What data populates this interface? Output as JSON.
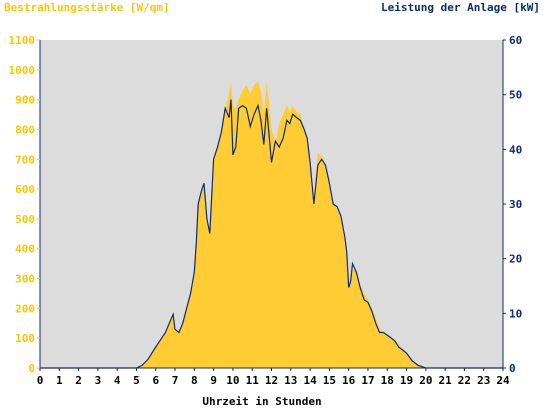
{
  "colors": {
    "irradiance_fill": "#FFCC33",
    "power_line": "#0F2B6B",
    "plot_background": "#DCDCDC",
    "left_axis_text": "#FFC600",
    "right_axis_text": "#0F2B6B",
    "axis_line": "#0F2B6B"
  },
  "chart_data": {
    "type": "area",
    "title_left": "Bestrahlungsstärke [W/qm]",
    "title_right": "Leistung der Anlage [kW]",
    "xlabel": "Uhrzeit in Stunden",
    "x_ticks": [
      "0",
      "1",
      "2",
      "3",
      "4",
      "5",
      "6",
      "7",
      "8",
      "9",
      "10",
      "11",
      "12",
      "13",
      "14",
      "15",
      "16",
      "17",
      "18",
      "19",
      "20",
      "21",
      "22",
      "23",
      "24"
    ],
    "y_left_ticks": [
      "0",
      "100",
      "200",
      "300",
      "400",
      "500",
      "600",
      "700",
      "800",
      "900",
      "1000",
      "1100"
    ],
    "y_right_ticks": [
      "0",
      "10",
      "20",
      "30",
      "40",
      "50",
      "60"
    ],
    "xlim": [
      0,
      24
    ],
    "ylim_left": [
      0,
      1100
    ],
    "ylim_right": [
      0,
      60
    ],
    "series": [
      {
        "name": "Bestrahlungsstärke [W/qm]",
        "axis": "left",
        "style": "area",
        "points": [
          [
            0,
            0
          ],
          [
            5.0,
            0
          ],
          [
            5.3,
            10
          ],
          [
            5.6,
            30
          ],
          [
            5.9,
            60
          ],
          [
            6.2,
            90
          ],
          [
            6.5,
            120
          ],
          [
            6.7,
            150
          ],
          [
            6.9,
            170
          ],
          [
            7.0,
            130
          ],
          [
            7.2,
            120
          ],
          [
            7.4,
            150
          ],
          [
            7.6,
            200
          ],
          [
            7.8,
            250
          ],
          [
            8.0,
            320
          ],
          [
            8.1,
            420
          ],
          [
            8.2,
            550
          ],
          [
            8.35,
            590
          ],
          [
            8.5,
            610
          ],
          [
            8.65,
            500
          ],
          [
            8.8,
            450
          ],
          [
            9.0,
            700
          ],
          [
            9.2,
            740
          ],
          [
            9.4,
            790
          ],
          [
            9.6,
            870
          ],
          [
            9.8,
            920
          ],
          [
            9.9,
            960
          ],
          [
            10.0,
            880
          ],
          [
            10.15,
            870
          ],
          [
            10.3,
            900
          ],
          [
            10.5,
            930
          ],
          [
            10.7,
            950
          ],
          [
            10.9,
            920
          ],
          [
            11.1,
            950
          ],
          [
            11.3,
            960
          ],
          [
            11.45,
            930
          ],
          [
            11.6,
            850
          ],
          [
            11.75,
            960
          ],
          [
            11.85,
            900
          ],
          [
            12.0,
            800
          ],
          [
            12.2,
            750
          ],
          [
            12.4,
            820
          ],
          [
            12.6,
            850
          ],
          [
            12.8,
            880
          ],
          [
            12.95,
            860
          ],
          [
            13.1,
            880
          ],
          [
            13.3,
            860
          ],
          [
            13.5,
            850
          ],
          [
            13.7,
            800
          ],
          [
            13.85,
            780
          ],
          [
            14.0,
            700
          ],
          [
            14.2,
            560
          ],
          [
            14.4,
            720
          ],
          [
            14.6,
            710
          ],
          [
            14.8,
            680
          ],
          [
            15.0,
            620
          ],
          [
            15.2,
            560
          ],
          [
            15.4,
            530
          ],
          [
            15.6,
            510
          ],
          [
            15.8,
            450
          ],
          [
            15.9,
            400
          ],
          [
            16.0,
            300
          ],
          [
            16.1,
            270
          ],
          [
            16.2,
            330
          ],
          [
            16.4,
            330
          ],
          [
            16.6,
            280
          ],
          [
            16.8,
            250
          ],
          [
            17.0,
            230
          ],
          [
            17.2,
            200
          ],
          [
            17.4,
            170
          ],
          [
            17.6,
            130
          ],
          [
            17.8,
            120
          ],
          [
            18.0,
            110
          ],
          [
            18.2,
            100
          ],
          [
            18.4,
            90
          ],
          [
            18.6,
            80
          ],
          [
            18.8,
            60
          ],
          [
            19.0,
            50
          ],
          [
            19.3,
            25
          ],
          [
            19.6,
            10
          ],
          [
            20.0,
            0
          ],
          [
            24,
            0
          ]
        ]
      },
      {
        "name": "Leistung der Anlage [kW]",
        "axis": "right",
        "style": "line",
        "points": [
          [
            0,
            0
          ],
          [
            5.0,
            0
          ],
          [
            5.3,
            0.5
          ],
          [
            5.6,
            1.6
          ],
          [
            5.9,
            3.3
          ],
          [
            6.2,
            4.9
          ],
          [
            6.5,
            6.5
          ],
          [
            6.7,
            8.2
          ],
          [
            6.9,
            9.8
          ],
          [
            7.0,
            7.1
          ],
          [
            7.2,
            6.5
          ],
          [
            7.4,
            8.2
          ],
          [
            7.6,
            10.9
          ],
          [
            7.8,
            13.6
          ],
          [
            8.0,
            17.5
          ],
          [
            8.1,
            22.9
          ],
          [
            8.2,
            30.0
          ],
          [
            8.35,
            32.2
          ],
          [
            8.5,
            33.8
          ],
          [
            8.65,
            27.3
          ],
          [
            8.8,
            24.6
          ],
          [
            9.0,
            38.2
          ],
          [
            9.2,
            40.4
          ],
          [
            9.4,
            43.1
          ],
          [
            9.6,
            47.5
          ],
          [
            9.8,
            45.8
          ],
          [
            9.9,
            49.1
          ],
          [
            10.0,
            39.0
          ],
          [
            10.15,
            40.4
          ],
          [
            10.3,
            47.5
          ],
          [
            10.5,
            48.0
          ],
          [
            10.7,
            47.5
          ],
          [
            10.9,
            44.2
          ],
          [
            11.1,
            46.4
          ],
          [
            11.3,
            48.0
          ],
          [
            11.45,
            45.3
          ],
          [
            11.6,
            40.9
          ],
          [
            11.75,
            47.5
          ],
          [
            11.85,
            43.6
          ],
          [
            12.0,
            37.6
          ],
          [
            12.2,
            41.5
          ],
          [
            12.4,
            40.4
          ],
          [
            12.6,
            42.0
          ],
          [
            12.8,
            45.3
          ],
          [
            12.95,
            44.7
          ],
          [
            13.1,
            46.4
          ],
          [
            13.3,
            45.8
          ],
          [
            13.5,
            45.3
          ],
          [
            13.7,
            43.6
          ],
          [
            13.85,
            42.0
          ],
          [
            14.0,
            37.6
          ],
          [
            14.2,
            30.0
          ],
          [
            14.4,
            37.1
          ],
          [
            14.6,
            38.2
          ],
          [
            14.8,
            37.1
          ],
          [
            15.0,
            33.8
          ],
          [
            15.2,
            30.0
          ],
          [
            15.4,
            29.5
          ],
          [
            15.6,
            27.8
          ],
          [
            15.8,
            24.0
          ],
          [
            15.9,
            21.3
          ],
          [
            16.0,
            14.7
          ],
          [
            16.1,
            15.8
          ],
          [
            16.2,
            19.1
          ],
          [
            16.4,
            17.5
          ],
          [
            16.6,
            14.7
          ],
          [
            16.8,
            12.5
          ],
          [
            17.0,
            12.0
          ],
          [
            17.2,
            10.4
          ],
          [
            17.4,
            8.2
          ],
          [
            17.6,
            6.5
          ],
          [
            17.8,
            6.5
          ],
          [
            18.0,
            6.0
          ],
          [
            18.2,
            5.5
          ],
          [
            18.4,
            4.9
          ],
          [
            18.6,
            3.8
          ],
          [
            18.8,
            3.3
          ],
          [
            19.0,
            2.7
          ],
          [
            19.3,
            1.3
          ],
          [
            19.6,
            0.5
          ],
          [
            20.0,
            0
          ],
          [
            24,
            0
          ]
        ]
      }
    ],
    "grid": false
  }
}
